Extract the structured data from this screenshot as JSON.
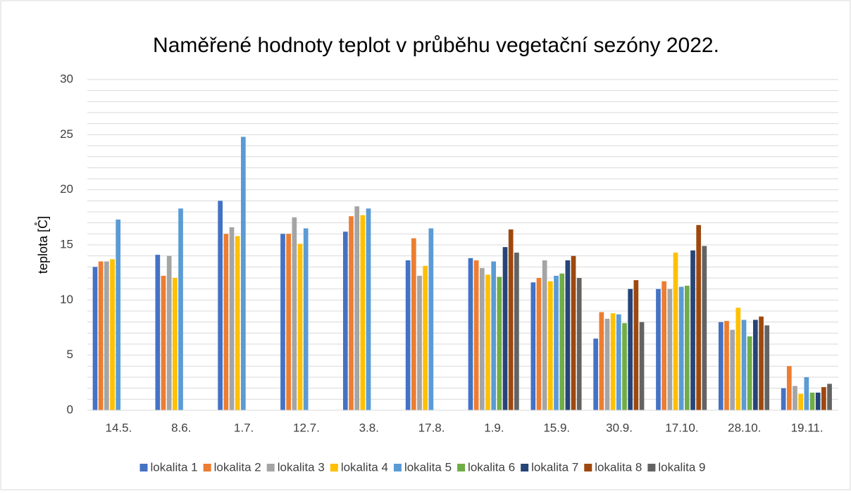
{
  "chart_data": {
    "type": "bar",
    "title": "Naměřené hodnoty teplot v průběhu vegetační sezóny 2022.",
    "y_label": "teplota [C̊]",
    "categories": [
      "14.5.",
      "8.6.",
      "1.7.",
      "12.7.",
      "3.8.",
      "17.8.",
      "1.9.",
      "15.9.",
      "30.9.",
      "17.10.",
      "28.10.",
      "19.11."
    ],
    "series": [
      {
        "name": "lokalita 1",
        "color": "#4472c4",
        "values": [
          13.0,
          14.1,
          19.0,
          16.0,
          16.2,
          13.6,
          13.8,
          11.6,
          6.5,
          11.0,
          8.0,
          2.0
        ]
      },
      {
        "name": "lokalita 2",
        "color": "#ed7d31",
        "values": [
          13.5,
          12.2,
          16.0,
          16.0,
          17.6,
          15.6,
          13.6,
          12.0,
          8.9,
          11.7,
          8.1,
          4.0
        ]
      },
      {
        "name": "lokalita 3",
        "color": "#a5a5a5",
        "values": [
          13.5,
          14.0,
          16.6,
          17.5,
          18.5,
          12.2,
          12.9,
          13.6,
          8.3,
          11.0,
          7.3,
          2.2
        ]
      },
      {
        "name": "lokalita 4",
        "color": "#ffc000",
        "values": [
          13.7,
          12.0,
          15.8,
          15.1,
          17.7,
          13.1,
          12.3,
          11.7,
          8.8,
          14.3,
          9.3,
          1.5
        ]
      },
      {
        "name": "lokalita 5",
        "color": "#5b9bd5",
        "values": [
          17.3,
          18.3,
          24.8,
          16.5,
          18.3,
          16.5,
          13.5,
          12.2,
          8.7,
          11.2,
          8.2,
          3.0
        ]
      },
      {
        "name": "lokalita 6",
        "color": "#70ad47",
        "values": [
          null,
          null,
          null,
          null,
          null,
          null,
          12.1,
          12.4,
          7.9,
          11.3,
          6.7,
          1.6
        ]
      },
      {
        "name": "lokalita 7",
        "color": "#264478",
        "values": [
          null,
          null,
          null,
          null,
          null,
          null,
          14.8,
          13.6,
          11.0,
          14.5,
          8.2,
          1.6
        ]
      },
      {
        "name": "lokalita 8",
        "color": "#9e480e",
        "values": [
          null,
          null,
          null,
          null,
          null,
          null,
          16.4,
          14.0,
          11.8,
          16.8,
          8.5,
          2.1
        ]
      },
      {
        "name": "lokalita 9",
        "color": "#636363",
        "values": [
          null,
          null,
          null,
          null,
          null,
          null,
          14.3,
          12.0,
          8.0,
          14.9,
          7.7,
          2.4
        ]
      }
    ],
    "ylim": [
      0,
      30
    ],
    "yticks": [
      0,
      5,
      10,
      15,
      20,
      25,
      30
    ],
    "y_minor_ticks": [
      1,
      2,
      3,
      4,
      6,
      7,
      8,
      9,
      11,
      12,
      13,
      14,
      16,
      17,
      18,
      19,
      21,
      22,
      23,
      24,
      26,
      27,
      28,
      29
    ],
    "grid": true,
    "legend": "bottom"
  }
}
